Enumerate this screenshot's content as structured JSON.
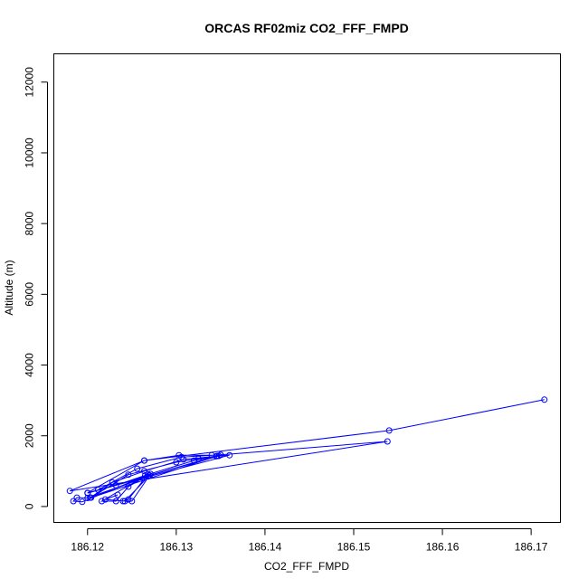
{
  "chart_data": {
    "type": "line",
    "title": "ORCAS RF02miz CO2_FFF_FMPD",
    "xlabel": "CO2_FFF_FMPD",
    "ylabel": "Altitude (m)",
    "xlim": [
      186.1162,
      186.1733
    ],
    "ylim": [
      -450,
      12800
    ],
    "x_ticks": [
      186.12,
      186.13,
      186.14,
      186.15,
      186.16,
      186.17
    ],
    "x_tick_labels": [
      "186.12",
      "186.13",
      "186.14",
      "186.15",
      "186.16",
      "186.17"
    ],
    "y_ticks": [
      0,
      2000,
      4000,
      6000,
      8000,
      10000,
      12000
    ],
    "y_tick_labels": [
      "0",
      "2000",
      "4000",
      "6000",
      "8000",
      "10000",
      "12000"
    ],
    "grid": false,
    "line_color": "#0000ff",
    "marker": "open-circle",
    "series": [
      {
        "x": [
          186.1715,
          186.154,
          186.1264,
          186.118,
          186.1538,
          186.135,
          186.134,
          186.1303,
          186.1264,
          186.12,
          186.136,
          186.1346,
          186.132,
          186.1265,
          186.1232,
          186.12,
          186.135,
          186.1306,
          186.1256,
          186.1212,
          186.1348,
          186.1325,
          186.13,
          186.1246,
          186.1204,
          186.1345,
          186.1308,
          186.1264,
          186.1228,
          186.1203,
          186.1268,
          186.12,
          186.1188,
          186.1184,
          186.1194,
          186.1271,
          186.1246,
          186.1232,
          186.1216,
          186.1268,
          186.1246,
          186.124,
          186.125,
          186.127,
          186.1242,
          186.122,
          186.1234
        ],
        "y": [
          3020,
          2150,
          1300,
          440,
          1840,
          1460,
          1450,
          1450,
          1300,
          390,
          1450,
          1430,
          1300,
          880,
          600,
          380,
          1460,
          1400,
          1070,
          470,
          1430,
          1350,
          1250,
          900,
          250,
          1420,
          1330,
          1000,
          680,
          250,
          850,
          240,
          250,
          150,
          130,
          920,
          560,
          150,
          150,
          910,
          200,
          150,
          150,
          880,
          150,
          200,
          330
        ]
      }
    ]
  }
}
